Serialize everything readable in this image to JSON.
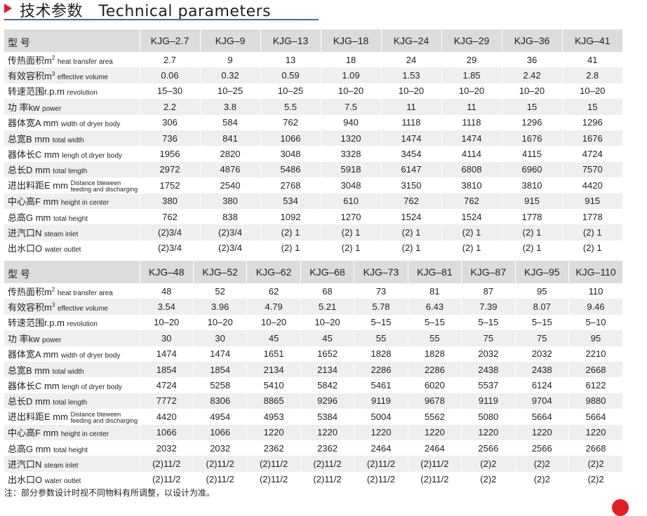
{
  "heading": "技术参数　Technical parameters",
  "labels": {
    "model": "型 号",
    "heat_area_zh": "传热面积m",
    "heat_area_sup": "2",
    "heat_area_en": "heat transfer area",
    "volume_zh": "有效容积m",
    "volume_sup": "3",
    "volume_en": "effective volume",
    "speed_zh": "转速范围r.p.m",
    "speed_en": "revolution",
    "power_zh": "功 率kw",
    "power_en": "power",
    "body_width_zh": "器体宽A mm",
    "body_width_en": "width of dryer body",
    "total_width_zh": "总宽B mm",
    "total_width_en": "total  width",
    "body_length_zh": "器体长C mm",
    "body_length_en": "lengh of dryer body",
    "total_length_zh": "总长D mm",
    "total_length_en": "total length",
    "feed_distance_zh": "进出料距E mm",
    "feed_distance_en_1": "Distance bteween",
    "feed_distance_en_2": "feeding and discharging",
    "center_height_zh": "中心高F mm",
    "center_height_en": "height in center",
    "total_height_zh": "总高G mm",
    "total_height_en": "total height",
    "steam_inlet_zh": "进汽口N",
    "steam_inlet_en": "steam inlet",
    "water_outlet_zh": "出水口O",
    "water_outlet_en": "water outlet"
  },
  "table1": {
    "models": [
      "KJG–2.7",
      "KJG–9",
      "KJG–13",
      "KJG–18",
      "KJG–24",
      "KJG–29",
      "KJG–36",
      "KJG–41"
    ],
    "rows": [
      [
        "2.7",
        "9",
        "13",
        "18",
        "24",
        "29",
        "36",
        "41"
      ],
      [
        "0.06",
        "0.32",
        "0.59",
        "1.09",
        "1.53",
        "1.85",
        "2.42",
        "2.8"
      ],
      [
        "15–30",
        "10–25",
        "10–25",
        "10–20",
        "10–20",
        "10–20",
        "10–20",
        "10–20"
      ],
      [
        "2.2",
        "3.8",
        "5.5",
        "7.5",
        "11",
        "11",
        "15",
        "15"
      ],
      [
        "306",
        "584",
        "762",
        "940",
        "1118",
        "1118",
        "1296",
        "1296"
      ],
      [
        "736",
        "841",
        "1066",
        "1320",
        "1474",
        "1474",
        "1676",
        "1676"
      ],
      [
        "1956",
        "2820",
        "3048",
        "3328",
        "3454",
        "4114",
        "4115",
        "4724"
      ],
      [
        "2972",
        "4876",
        "5486",
        "5918",
        "6147",
        "6808",
        "6960",
        "7570"
      ],
      [
        "1752",
        "2540",
        "2768",
        "3048",
        "3150",
        "3810",
        "3810",
        "4420"
      ],
      [
        "380",
        "380",
        "534",
        "610",
        "762",
        "762",
        "915",
        "915"
      ],
      [
        "762",
        "838",
        "1092",
        "1270",
        "1524",
        "1524",
        "1778",
        "1778"
      ],
      [
        "(2)3/4",
        "(2)3/4",
        "(2) 1",
        "(2) 1",
        "(2) 1",
        "(2) 1",
        "(2) 1",
        "(2) 1"
      ],
      [
        "(2)3/4",
        "(2)3/4",
        "(2) 1",
        "(2) 1",
        "(2) 1",
        "(2) 1",
        "(2) 1",
        "(2) 1"
      ]
    ]
  },
  "table2": {
    "models": [
      "KJG–48",
      "KJG–52",
      "KJG–62",
      "KJG–68",
      "KJG–73",
      "KJG–81",
      "KJG–87",
      "KJG–95",
      "KJG–110"
    ],
    "rows": [
      [
        "48",
        "52",
        "62",
        "68",
        "73",
        "81",
        "87",
        "95",
        "110"
      ],
      [
        "3.54",
        "3.96",
        "4.79",
        "5.21",
        "5.78",
        "6.43",
        "7.39",
        "8.07",
        "9.46"
      ],
      [
        "10–20",
        "10–20",
        "10–20",
        "10–20",
        "5–15",
        "5–15",
        "5–15",
        "5–15",
        "5–10"
      ],
      [
        "30",
        "30",
        "45",
        "45",
        "55",
        "55",
        "75",
        "75",
        "95"
      ],
      [
        "1474",
        "1474",
        "1651",
        "1652",
        "1828",
        "1828",
        "2032",
        "2032",
        "2210"
      ],
      [
        "1854",
        "1854",
        "2134",
        "2134",
        "2286",
        "2286",
        "2438",
        "2438",
        "2668"
      ],
      [
        "4724",
        "5258",
        "5410",
        "5842",
        "5461",
        "6020",
        "5537",
        "6124",
        "6122"
      ],
      [
        "7772",
        "8306",
        "8865",
        "9296",
        "9119",
        "9678",
        "9119",
        "9704",
        "9880"
      ],
      [
        "4420",
        "4954",
        "4953",
        "5384",
        "5004",
        "5562",
        "5080",
        "5664",
        "5664"
      ],
      [
        "1066",
        "1066",
        "1220",
        "1220",
        "1220",
        "1220",
        "1220",
        "1220",
        "1220"
      ],
      [
        "2032",
        "2032",
        "2362",
        "2362",
        "2464",
        "2464",
        "2566",
        "2566",
        "2668"
      ],
      [
        "(2)11/2",
        "(2)11/2",
        "(2)11/2",
        "(2)11/2",
        "(2)11/2",
        "(2)11/2",
        "(2)2",
        "(2)2",
        "(2)2"
      ],
      [
        "(2)11/2",
        "(2)11/2",
        "(2)11/2",
        "(2)11/2",
        "(2)11/2",
        "(2)11/2",
        "(2)2",
        "(2)2",
        "(2)2"
      ]
    ]
  },
  "note": "注：部分参数设计时视不同物料有所调整，以设计为准。",
  "colors": {
    "accent": "#e21f26",
    "rule": "#3a6db0",
    "header_bg": "#dcdcdd",
    "stripe_bg": "#efeff0",
    "text": "#231f20"
  }
}
